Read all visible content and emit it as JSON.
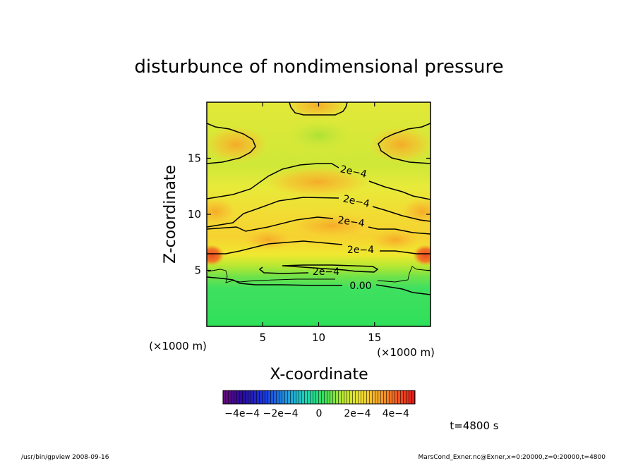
{
  "chart_data": {
    "type": "heatmap",
    "title": "disturbunce of nondimensional pressure",
    "xlabel": "X-coordinate",
    "ylabel": "Z-coordinate",
    "x_unit": "(×1000 m)",
    "y_unit": "(×1000 m)",
    "xlim": [
      0,
      20
    ],
    "ylim": [
      0,
      20
    ],
    "x_ticks": [
      5,
      10,
      15
    ],
    "y_ticks": [
      5,
      10,
      15
    ],
    "colorbar": {
      "range": [
        -0.0005,
        0.0005
      ],
      "tick_values": [
        -0.0004,
        -0.0002,
        0,
        0.0002,
        0.0004
      ],
      "tick_labels": [
        "−4e−4",
        "−2e−4",
        "0",
        "2e−4",
        "4e−4"
      ]
    },
    "contours": [
      {
        "level": "2e−4",
        "label": "2e−4"
      },
      {
        "level": "2e−4",
        "label": "2e−4"
      },
      {
        "level": "2e−4",
        "label": "2e−4"
      },
      {
        "level": "2e−4",
        "label": "2e−4"
      },
      {
        "level": "2e−4",
        "label": "2e−4"
      },
      {
        "level": "0",
        "label": "0.00"
      }
    ],
    "time_label": "t=4800 s",
    "footer_left": "/usr/bin/gpview   2008-09-16",
    "footer_right": "MarsCond_Exner.nc@Exner,x=0:20000,z=0:20000,t=4800"
  }
}
